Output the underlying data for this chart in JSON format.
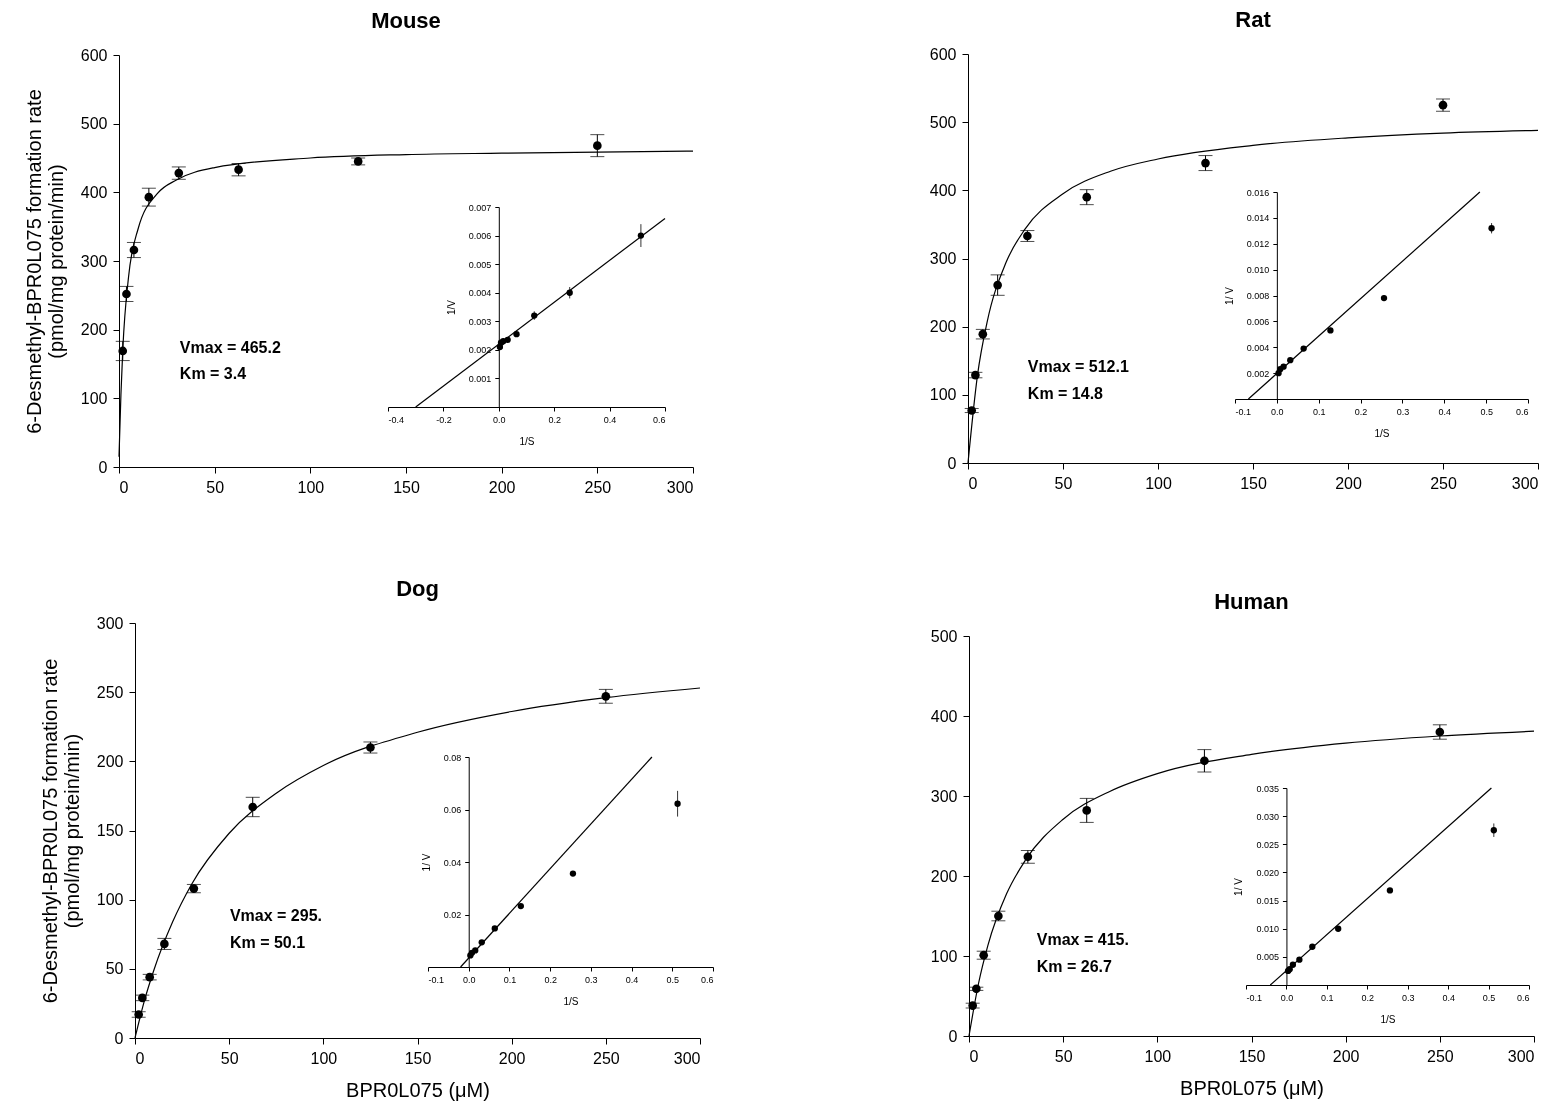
{
  "chart_data": [
    {
      "type": "scatter",
      "title": "Mouse",
      "ylabel": "6-Desmethyl-BPR0L075 formation rate\n(pmol/mg protein/min)",
      "xlim": [
        0,
        300
      ],
      "xticks": [
        0,
        50,
        100,
        150,
        200,
        250,
        300
      ],
      "ylim": [
        0,
        600
      ],
      "yticks": [
        0,
        100,
        200,
        300,
        400,
        500,
        600
      ],
      "annotations": [
        "Vmax = 465.2",
        "Km = 3.4"
      ],
      "x": [
        1.95,
        3.9,
        7.8,
        15.6,
        31.25,
        62.5,
        125,
        250
      ],
      "series": [
        {
          "type": "scatter",
          "marker": "circle",
          "color": "#000000",
          "values": [
            169,
            252,
            316,
            393,
            428,
            433,
            445,
            468
          ],
          "errors": [
            14,
            11,
            11,
            13,
            9,
            9,
            5,
            16
          ]
        },
        {
          "type": "line",
          "color": "#000000",
          "x": [
            0,
            1,
            2,
            5,
            10,
            20,
            30,
            50,
            100,
            150,
            200,
            300
          ],
          "values": [
            15,
            105,
            172,
            277,
            347,
            398,
            418,
            436,
            450,
            455,
            457,
            460
          ]
        }
      ]
    },
    {
      "type": "scatter",
      "xlabel": "1/S",
      "ylabel": "1/V",
      "xlim": [
        -0.4,
        0.6
      ],
      "xticks": [
        {
          "value": -0.4,
          "label": "-0.4"
        },
        {
          "value": -0.2,
          "label": "-0.2"
        },
        {
          "value": 0,
          "label": "0.0"
        },
        {
          "value": 0.2,
          "label": "0.2"
        },
        {
          "value": 0.4,
          "label": "0.4"
        },
        {
          "value": 0.6,
          "label": "0.6"
        }
      ],
      "ylim": [
        0,
        0.007
      ],
      "yticks": [
        0.001,
        0.002,
        0.003,
        0.004,
        0.005,
        0.006,
        0.007
      ],
      "x": [
        0.004,
        0.008,
        0.016,
        0.032,
        0.064,
        0.128,
        0.256,
        0.513
      ],
      "series": [
        {
          "type": "scatter",
          "marker": "circle",
          "color": "#000000",
          "values": [
            0.0021,
            0.00225,
            0.0023,
            0.00235,
            0.00255,
            0.0032,
            0.004,
            0.006
          ],
          "errors": [
            0.0001,
            0.0001,
            0.0001,
            0.0001,
            0.0001,
            0.00015,
            0.0002,
            0.0004
          ]
        },
        {
          "type": "line",
          "color": "#000000",
          "x": [
            -0.3,
            0.6
          ],
          "values": [
            0,
            0.0066
          ]
        }
      ]
    },
    {
      "type": "scatter",
      "title": "Rat",
      "xlim": [
        0,
        300
      ],
      "xticks": [
        0,
        50,
        100,
        150,
        200,
        250,
        300
      ],
      "ylim": [
        0,
        600
      ],
      "yticks": [
        0,
        100,
        200,
        300,
        400,
        500,
        600
      ],
      "annotations": [
        "Vmax = 512.1",
        "Km = 14.8"
      ],
      "x": [
        1.95,
        3.9,
        7.8,
        15.6,
        31.25,
        62.5,
        125,
        250
      ],
      "series": [
        {
          "type": "scatter",
          "marker": "circle",
          "color": "#000000",
          "values": [
            77,
            129,
            189,
            261,
            333,
            390,
            440,
            525
          ],
          "errors": [
            3,
            4,
            7,
            15,
            8,
            11,
            11,
            9
          ]
        },
        {
          "type": "line",
          "color": "#000000",
          "x": [
            0,
            5,
            10,
            20,
            30,
            50,
            75,
            100,
            150,
            200,
            250,
            300
          ],
          "values": [
            0,
            129,
            206,
            294,
            343,
            395,
            428,
            446,
            466,
            477,
            484,
            488
          ]
        }
      ]
    },
    {
      "type": "scatter",
      "xlabel": "1/S",
      "ylabel": "1/ V",
      "xlim": [
        -0.1,
        0.6
      ],
      "xticks": [
        {
          "value": -0.1,
          "label": "-0.1"
        },
        {
          "value": 0,
          "label": "0.0"
        },
        {
          "value": 0.1,
          "label": "0.1"
        },
        {
          "value": 0.2,
          "label": "0.2"
        },
        {
          "value": 0.3,
          "label": "0.3"
        },
        {
          "value": 0.4,
          "label": "0.4"
        },
        {
          "value": 0.5,
          "label": "0.5"
        },
        {
          "value": 0.6,
          "label": "0.6"
        }
      ],
      "ylim": [
        0,
        0.016
      ],
      "yticks": [
        {
          "value": 0.002,
          "label": "0.002"
        },
        {
          "value": 0.004,
          "label": "0.004"
        },
        {
          "value": 0.006,
          "label": "0.006"
        },
        {
          "value": 0.008,
          "label": "0.008"
        },
        {
          "value": 0.01,
          "label": "0.010"
        },
        {
          "value": 0.012,
          "label": "0.012"
        },
        {
          "value": 0.014,
          "label": "0.014"
        },
        {
          "value": 0.016,
          "label": "0.016"
        }
      ],
      "x": [
        0.004,
        0.008,
        0.016,
        0.032,
        0.064,
        0.128,
        0.256,
        0.513
      ],
      "series": [
        {
          "type": "scatter",
          "marker": "circle",
          "color": "#000000",
          "values": [
            0.002,
            0.0023,
            0.0025,
            0.003,
            0.0039,
            0.0053,
            0.0078,
            0.0132
          ],
          "errors": [
            0.0001,
            0.0001,
            0.0001,
            0.0001,
            0.0002,
            0.0002,
            0.0002,
            0.0004
          ]
        },
        {
          "type": "line",
          "color": "#000000",
          "x": [
            -0.068,
            0.485
          ],
          "values": [
            0,
            0.016
          ]
        }
      ]
    },
    {
      "type": "scatter",
      "title": "Dog",
      "xlabel": "BPR0L075 (μM)",
      "ylabel": "6-Desmethyl-BPR0L075 formation rate\n(pmol/mg protein/min)",
      "xlim": [
        0,
        300
      ],
      "xticks": [
        0,
        50,
        100,
        150,
        200,
        250,
        300
      ],
      "ylim": [
        0,
        300
      ],
      "yticks": [
        0,
        50,
        100,
        150,
        200,
        250,
        300
      ],
      "annotations": [
        "Vmax = 295.",
        "Km = 50.1"
      ],
      "x": [
        1.95,
        3.9,
        7.8,
        15.6,
        31.25,
        62.5,
        125,
        250
      ],
      "series": [
        {
          "type": "scatter",
          "marker": "circle",
          "color": "#000000",
          "values": [
            17,
            29,
            44,
            68,
            108,
            167,
            210,
            247
          ],
          "errors": [
            2,
            2,
            2,
            4,
            3,
            7,
            4,
            5
          ]
        },
        {
          "type": "line",
          "color": "#000000",
          "x": [
            0,
            5,
            10,
            20,
            30,
            50,
            75,
            100,
            150,
            200,
            250,
            300
          ],
          "values": [
            0,
            27,
            49,
            84,
            111,
            148,
            177,
            197,
            221,
            236,
            246,
            253
          ]
        }
      ]
    },
    {
      "type": "scatter",
      "xlabel": "1/S",
      "ylabel": "1/ V",
      "xlim": [
        -0.1,
        0.6
      ],
      "xticks": [
        {
          "value": -0.1,
          "label": "-0.1"
        },
        {
          "value": 0,
          "label": "0.0"
        },
        {
          "value": 0.1,
          "label": "0.1"
        },
        {
          "value": 0.2,
          "label": "0.2"
        },
        {
          "value": 0.3,
          "label": "0.3"
        },
        {
          "value": 0.4,
          "label": "0.4"
        },
        {
          "value": 0.5,
          "label": "0.5"
        },
        {
          "value": 0.6,
          "label": "0.6"
        }
      ],
      "ylim": [
        0,
        0.08
      ],
      "yticks": [
        {
          "value": 0.02,
          "label": "0.02"
        },
        {
          "value": 0.04,
          "label": "0.04"
        },
        {
          "value": 0.06,
          "label": "0.06"
        },
        {
          "value": 0.08,
          "label": "0.08"
        }
      ],
      "x": [
        0.004,
        0.008,
        0.016,
        0.032,
        0.064,
        0.128,
        0.256,
        0.513
      ],
      "series": [
        {
          "type": "scatter",
          "marker": "circle",
          "color": "#000000",
          "values": [
            0.0044,
            0.0054,
            0.0063,
            0.0094,
            0.0147,
            0.0232,
            0.0356,
            0.0622
          ],
          "errors": [
            0.0006,
            0.0006,
            0.0006,
            0.0006,
            0.0006,
            0.0006,
            0.0007,
            0.0049
          ]
        },
        {
          "type": "line",
          "color": "#000000",
          "x": [
            -0.02,
            0.45
          ],
          "values": [
            0,
            0.08
          ]
        }
      ]
    },
    {
      "type": "scatter",
      "title": "Human",
      "xlabel": "BPR0L075 (μM)",
      "xlim": [
        0,
        300
      ],
      "xticks": [
        0,
        50,
        100,
        150,
        200,
        250,
        300
      ],
      "ylim": [
        0,
        500
      ],
      "yticks": [
        0,
        100,
        200,
        300,
        400,
        500
      ],
      "annotations": [
        "Vmax = 415.",
        "Km = 26.7"
      ],
      "x": [
        1.95,
        3.9,
        7.8,
        15.6,
        31.25,
        62.5,
        125,
        250
      ],
      "series": [
        {
          "type": "scatter",
          "marker": "circle",
          "color": "#000000",
          "values": [
            38,
            59,
            101,
            150,
            224,
            282,
            344,
            380
          ],
          "errors": [
            3,
            2,
            5,
            6,
            8,
            15,
            14,
            9
          ]
        },
        {
          "type": "line",
          "color": "#000000",
          "x": [
            0,
            5,
            10,
            20,
            30,
            50,
            75,
            100,
            150,
            200,
            250,
            300
          ],
          "values": [
            0,
            65,
            113,
            178,
            220,
            271,
            306,
            328,
            352,
            366,
            375,
            381
          ]
        }
      ]
    },
    {
      "type": "scatter",
      "xlabel": "1/S",
      "ylabel": "1/ V",
      "xlim": [
        -0.1,
        0.6
      ],
      "xticks": [
        {
          "value": -0.1,
          "label": "-0.1"
        },
        {
          "value": 0,
          "label": "0.0"
        },
        {
          "value": 0.1,
          "label": "0.1"
        },
        {
          "value": 0.2,
          "label": "0.2"
        },
        {
          "value": 0.3,
          "label": "0.3"
        },
        {
          "value": 0.4,
          "label": "0.4"
        },
        {
          "value": 0.5,
          "label": "0.5"
        },
        {
          "value": 0.6,
          "label": "0.6"
        }
      ],
      "ylim": [
        0,
        0.035
      ],
      "yticks": [
        {
          "value": 0.005,
          "label": "0.005"
        },
        {
          "value": 0.01,
          "label": "0.010"
        },
        {
          "value": 0.015,
          "label": "0.015"
        },
        {
          "value": 0.02,
          "label": "0.020"
        },
        {
          "value": 0.025,
          "label": "0.025"
        },
        {
          "value": 0.03,
          "label": "0.030"
        },
        {
          "value": 0.035,
          "label": "0.035"
        }
      ],
      "x": [
        0.004,
        0.008,
        0.016,
        0.032,
        0.064,
        0.128,
        0.256,
        0.513
      ],
      "series": [
        {
          "type": "scatter",
          "marker": "circle",
          "color": "#000000",
          "values": [
            0.0025,
            0.0028,
            0.0036,
            0.0045,
            0.0068,
            0.01,
            0.0168,
            0.0275
          ],
          "errors": [
            0.0002,
            0.0002,
            0.0002,
            0.0002,
            0.0002,
            0.0004,
            0.0002,
            0.0012
          ]
        },
        {
          "type": "line",
          "color": "#000000",
          "x": [
            -0.04,
            0.507
          ],
          "values": [
            0,
            0.035
          ]
        }
      ]
    }
  ]
}
